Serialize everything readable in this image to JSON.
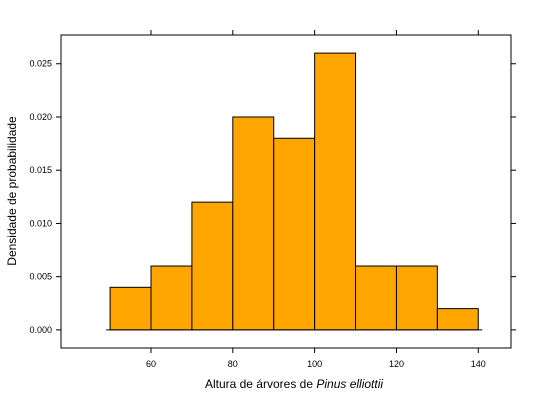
{
  "chart_data": {
    "type": "bar",
    "subtype": "histogram",
    "bins": [
      {
        "start": 50,
        "end": 60,
        "density": 0.004
      },
      {
        "start": 60,
        "end": 70,
        "density": 0.006
      },
      {
        "start": 70,
        "end": 80,
        "density": 0.012
      },
      {
        "start": 80,
        "end": 90,
        "density": 0.02
      },
      {
        "start": 90,
        "end": 100,
        "density": 0.018
      },
      {
        "start": 100,
        "end": 110,
        "density": 0.026
      },
      {
        "start": 110,
        "end": 120,
        "density": 0.006
      },
      {
        "start": 120,
        "end": 130,
        "density": 0.006
      },
      {
        "start": 130,
        "end": 140,
        "density": 0.002
      }
    ],
    "xlabel_prefix": "Altura de árvores de ",
    "xlabel_species": "Pinus elliottii",
    "ylabel": "Densidade de probabilidade",
    "xlim": [
      38,
      148
    ],
    "ylim": [
      -0.0017,
      0.0277
    ],
    "x_ticks": [
      60,
      80,
      100,
      120,
      140
    ],
    "y_ticks": [
      0.0,
      0.005,
      0.01,
      0.015,
      0.02,
      0.025
    ],
    "y_tick_labels": [
      "0.000",
      "0.005",
      "0.010",
      "0.015",
      "0.020",
      "0.025"
    ],
    "bar_color": "#FFA500",
    "bar_edge_color": "#000000",
    "grid": false
  }
}
